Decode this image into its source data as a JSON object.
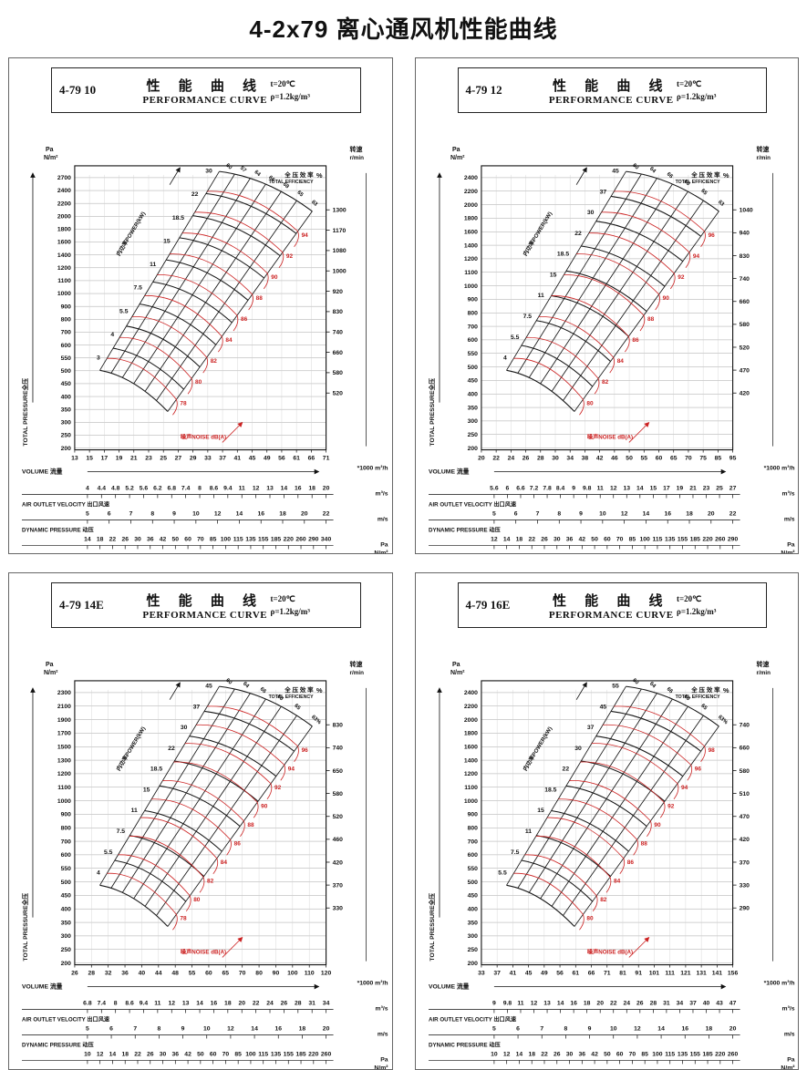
{
  "page_title": "4-2x79 离心通风机性能曲线",
  "shared": {
    "title_cn": "性 能 曲 线",
    "title_en": "PERFORMANCE CURVE",
    "cond_t": "t=20℃",
    "cond_rho": "ρ=1.2kg/m³",
    "pressure_unit_1": "Pa",
    "pressure_unit_2": "N/m²",
    "speed_label": "转速",
    "speed_unit": "r/min",
    "eff_cn": "全 压 效 率",
    "eff_en": "TOTAL EFFICIENCY",
    "percent": "%",
    "total_pressure_axis": "TOTAL PRESSURE全压",
    "volume_label": "VOLUME  流量",
    "volume_unit": "*1000 m³/h",
    "m3s_unit": "m³/s",
    "outlet_label": "AIR OUTLET VELOCITY 出口风速",
    "ms_unit": "m/s",
    "dyn_label": "DYNAMIC PRESSURE 动压",
    "dyn_unit_1": "Pa",
    "dyn_unit_2": "N/m²",
    "power_label": "内功率POWER(kW)",
    "noise_label": "噪声NOISE dB(A)"
  },
  "chart_data": [
    {
      "type": "line",
      "model": "4-79 10",
      "xlabel": "VOLUME 流量 (*1000 m³/h)",
      "ylabel": "TOTAL PRESSURE 全压 (Pa N/m²)",
      "pressure_ticks": [
        2700,
        2400,
        2200,
        2000,
        1800,
        1600,
        1400,
        1200,
        1100,
        1000,
        900,
        800,
        700,
        600,
        550,
        500,
        450,
        400,
        350,
        300,
        250,
        200
      ],
      "speed_ticks": [
        1300,
        1170,
        1080,
        1000,
        920,
        830,
        740,
        660,
        580,
        520
      ],
      "flow_ticks": [
        13,
        15,
        17,
        19,
        21,
        23,
        25,
        27,
        29,
        33,
        37,
        41,
        45,
        49,
        56,
        61,
        66,
        71
      ],
      "flow_m3s": [
        4,
        4.4,
        4.8,
        5.2,
        5.6,
        6.2,
        6.8,
        7.4,
        8,
        8.6,
        9.4,
        11,
        12,
        13,
        14,
        16,
        18,
        20
      ],
      "outlet_velocity": [
        5,
        6,
        7,
        8,
        9,
        10,
        12,
        14,
        16,
        18,
        20,
        22
      ],
      "dynamic_pressure": [
        14,
        18,
        22,
        26,
        30,
        36,
        42,
        50,
        60,
        70,
        85,
        100,
        115,
        135,
        155,
        185,
        220,
        260,
        290,
        340
      ],
      "power_kw": [
        30,
        22,
        18.5,
        15,
        11,
        7.5,
        5.5,
        4,
        3
      ],
      "efficiency_pct": [
        "60",
        "57",
        "64",
        "66",
        "68",
        "65",
        "63"
      ],
      "noise_dba": [
        94,
        92,
        90,
        88,
        86,
        84,
        82,
        80,
        78
      ]
    },
    {
      "type": "line",
      "model": "4-79 12",
      "xlabel": "VOLUME 流量 (*1000 m³/h)",
      "ylabel": "TOTAL PRESSURE 全压 (Pa N/m²)",
      "pressure_ticks": [
        2400,
        2200,
        2000,
        1800,
        1600,
        1400,
        1200,
        1100,
        1000,
        900,
        800,
        700,
        600,
        550,
        500,
        450,
        400,
        350,
        300,
        250,
        200
      ],
      "speed_ticks": [
        1040,
        940,
        830,
        740,
        660,
        580,
        520,
        470,
        420
      ],
      "flow_ticks": [
        20,
        22,
        24,
        26,
        28,
        30,
        34,
        38,
        42,
        46,
        50,
        55,
        60,
        65,
        70,
        75,
        85,
        95
      ],
      "flow_m3s": [
        5.6,
        6,
        6.6,
        7.2,
        7.8,
        8.4,
        9,
        9.8,
        11,
        12,
        13,
        14,
        15,
        17,
        19,
        21,
        23,
        25,
        27
      ],
      "outlet_velocity": [
        5,
        6,
        7,
        8,
        9,
        10,
        12,
        14,
        16,
        18,
        20,
        22
      ],
      "dynamic_pressure": [
        12,
        14,
        18,
        22,
        26,
        30,
        36,
        42,
        50,
        60,
        70,
        85,
        100,
        115,
        135,
        155,
        185,
        220,
        260,
        290
      ],
      "power_kw": [
        45,
        37,
        30,
        22,
        18.5,
        15,
        11,
        7.5,
        5.5,
        4
      ],
      "efficiency_pct": [
        "60",
        "64",
        "66",
        "68",
        "65",
        "63"
      ],
      "noise_dba": [
        96,
        94,
        92,
        90,
        88,
        86,
        84,
        82,
        80
      ]
    },
    {
      "type": "line",
      "model": "4-79 14E",
      "xlabel": "VOLUME 流量 (*1000 m³/h)",
      "ylabel": "TOTAL PRESSURE 全压 (Pa N/m²)",
      "pressure_ticks": [
        2300,
        2100,
        1900,
        1700,
        1500,
        1300,
        1200,
        1100,
        1000,
        900,
        800,
        700,
        600,
        550,
        500,
        450,
        400,
        350,
        300,
        250,
        200
      ],
      "speed_ticks": [
        830,
        740,
        650,
        580,
        520,
        460,
        420,
        370,
        330
      ],
      "flow_ticks": [
        26,
        28,
        32,
        36,
        40,
        44,
        48,
        55,
        60,
        65,
        70,
        80,
        90,
        100,
        110,
        120
      ],
      "flow_m3s": [
        6.8,
        7.4,
        8,
        8.6,
        9.4,
        11,
        12,
        13,
        14,
        16,
        18,
        20,
        22,
        24,
        26,
        28,
        31,
        34
      ],
      "outlet_velocity": [
        5,
        6,
        7,
        8,
        9,
        10,
        12,
        14,
        16,
        18,
        20
      ],
      "dynamic_pressure": [
        10,
        12,
        14,
        18,
        22,
        26,
        30,
        36,
        42,
        50,
        60,
        70,
        85,
        100,
        115,
        135,
        155,
        185,
        220,
        260
      ],
      "power_kw": [
        45,
        37,
        30,
        22,
        18.5,
        15,
        11,
        7.5,
        5.5,
        4
      ],
      "efficiency_pct": [
        "60",
        "64",
        "66",
        "68",
        "65",
        "63%"
      ],
      "noise_dba": [
        96,
        94,
        92,
        90,
        88,
        86,
        84,
        82,
        80,
        78
      ]
    },
    {
      "type": "line",
      "model": "4-79 16E",
      "xlabel": "VOLUME 流量 (*1000 m³/h)",
      "ylabel": "TOTAL PRESSURE 全压 (Pa N/m²)",
      "pressure_ticks": [
        2400,
        2200,
        2000,
        1800,
        1600,
        1400,
        1200,
        1100,
        1000,
        900,
        800,
        700,
        600,
        550,
        500,
        450,
        400,
        350,
        300,
        250,
        200
      ],
      "speed_ticks": [
        740,
        660,
        580,
        510,
        470,
        420,
        370,
        330,
        290
      ],
      "flow_ticks": [
        33,
        37,
        41,
        45,
        49,
        56,
        61,
        66,
        71,
        81,
        91,
        101,
        111,
        121,
        131,
        141,
        156
      ],
      "flow_m3s": [
        9,
        9.8,
        11,
        12,
        13,
        14,
        16,
        18,
        20,
        22,
        24,
        26,
        28,
        31,
        34,
        37,
        40,
        43,
        47
      ],
      "outlet_velocity": [
        5,
        6,
        7,
        8,
        9,
        10,
        12,
        14,
        16,
        18,
        20
      ],
      "dynamic_pressure": [
        10,
        12,
        14,
        18,
        22,
        26,
        30,
        36,
        42,
        50,
        60,
        70,
        85,
        100,
        115,
        135,
        155,
        185,
        220,
        260
      ],
      "power_kw": [
        55,
        45,
        37,
        30,
        22,
        18.5,
        15,
        11,
        7.5,
        5.5
      ],
      "efficiency_pct": [
        "60",
        "64",
        "66",
        "68",
        "65",
        "63%"
      ],
      "noise_dba": [
        98,
        96,
        94,
        92,
        90,
        88,
        86,
        84,
        82,
        80
      ]
    }
  ]
}
